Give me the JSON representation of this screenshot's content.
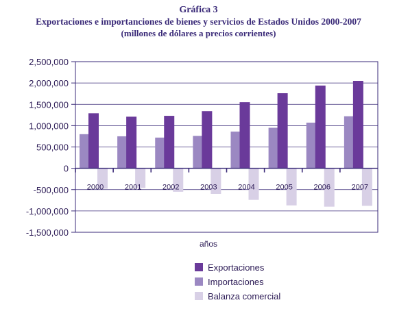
{
  "chart_data": {
    "type": "bar",
    "title": "Gráfica 3",
    "subtitle": "Exportaciones e importanciones de bienes y servicios de Estados Unidos 2000-2007",
    "subtitle2": "(millones de dólares a precios corrientes)",
    "xlabel": "años",
    "ylabel": "",
    "categories": [
      "2000",
      "2001",
      "2002",
      "2003",
      "2004",
      "2005",
      "2006",
      "2007"
    ],
    "ylim": [
      -1500000,
      2500000
    ],
    "yticks": [
      2500000,
      2000000,
      1500000,
      1000000,
      500000,
      0,
      -500000,
      -1000000,
      -1500000
    ],
    "ytick_labels": [
      "2,500,000",
      "2,000,000",
      "1,500,000",
      "1,000,000",
      "500,000",
      "0",
      "-500,000",
      "-1,000,000",
      "-1,500,000"
    ],
    "grid": true,
    "legend_position": "bottom",
    "series": [
      {
        "name": "Importaciones",
        "color": "#9b88c2",
        "values": [
          800000,
          750000,
          720000,
          760000,
          860000,
          950000,
          1070000,
          1220000
        ]
      },
      {
        "name": "Exportaciones",
        "color": "#6a3a9a",
        "values": [
          1290000,
          1210000,
          1230000,
          1340000,
          1550000,
          1760000,
          1940000,
          2050000
        ]
      },
      {
        "name": "Balanza comercial",
        "color": "#d8d0e6",
        "values": [
          -480000,
          -460000,
          -550000,
          -600000,
          -740000,
          -870000,
          -900000,
          -880000
        ]
      }
    ],
    "legend_order": [
      "Exportaciones",
      "Importaciones",
      "Balanza comercial"
    ]
  }
}
